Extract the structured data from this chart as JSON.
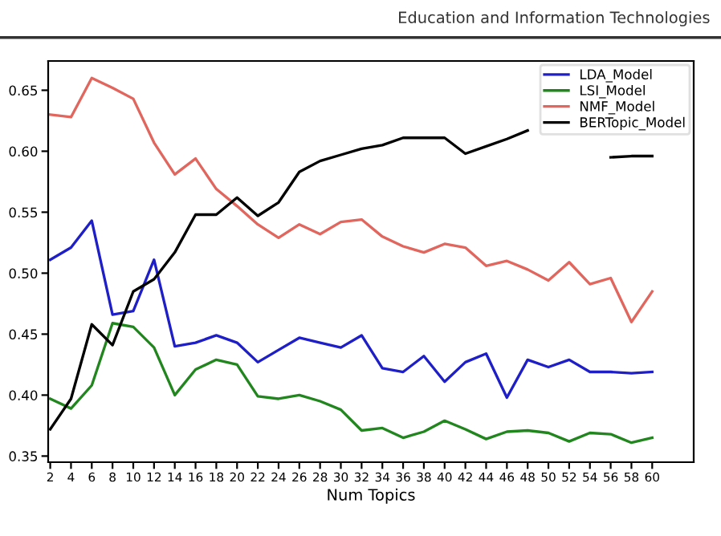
{
  "chart_data": {
    "type": "line",
    "annotations": [
      "Education and Information Technologies"
    ],
    "xlabel": "Num Topics",
    "x": [
      2,
      4,
      6,
      8,
      10,
      12,
      14,
      16,
      18,
      20,
      22,
      24,
      26,
      28,
      30,
      32,
      34,
      36,
      38,
      40,
      42,
      44,
      46,
      48,
      50,
      52,
      54,
      56,
      58,
      60
    ],
    "series": [
      {
        "name": "LDA_Model",
        "color": "#1f1fc8",
        "values": [
          0.511,
          0.521,
          0.543,
          0.466,
          0.469,
          0.511,
          0.44,
          0.443,
          0.449,
          0.443,
          0.427,
          0.437,
          0.447,
          0.443,
          0.439,
          0.449,
          0.422,
          0.419,
          0.432,
          0.411,
          0.427,
          0.434,
          0.398,
          0.429,
          0.423,
          0.429,
          0.419,
          0.419,
          0.418,
          0.419
        ]
      },
      {
        "name": "LSI_Model",
        "color": "#22861f",
        "values": [
          0.397,
          0.389,
          0.408,
          0.459,
          0.456,
          0.439,
          0.4,
          0.421,
          0.429,
          0.425,
          0.399,
          0.397,
          0.4,
          0.395,
          0.388,
          0.371,
          0.373,
          0.365,
          0.37,
          0.379,
          0.372,
          0.364,
          0.37,
          0.371,
          0.369,
          0.362,
          0.369,
          0.368,
          0.361,
          0.365
        ]
      },
      {
        "name": "NMF_Model",
        "color": "#e0665e",
        "values": [
          0.63,
          0.628,
          0.66,
          0.652,
          0.643,
          0.607,
          0.581,
          0.594,
          0.569,
          0.555,
          0.54,
          0.529,
          0.54,
          0.532,
          0.542,
          0.544,
          0.53,
          0.522,
          0.517,
          0.524,
          0.521,
          0.506,
          0.51,
          0.503,
          0.494,
          0.509,
          0.491,
          0.496,
          0.46,
          0.485
        ]
      },
      {
        "name": "BERTopic_Model",
        "color": "#000000",
        "values": [
          0.372,
          0.397,
          0.458,
          0.441,
          0.485,
          0.495,
          0.517,
          0.548,
          0.548,
          0.562,
          0.547,
          0.558,
          0.583,
          0.592,
          0.597,
          0.602,
          0.605,
          0.611,
          0.611,
          0.611,
          0.598,
          0.604,
          0.61,
          0.617,
          null,
          null,
          null,
          0.595,
          0.596,
          0.596
        ]
      }
    ],
    "xlim": [
      1.8,
      64
    ],
    "xticks": [
      2,
      4,
      6,
      8,
      10,
      12,
      14,
      16,
      18,
      20,
      22,
      24,
      26,
      28,
      30,
      32,
      34,
      36,
      38,
      40,
      42,
      44,
      46,
      48,
      50,
      52,
      54,
      56,
      58,
      60
    ],
    "ylim": [
      0.345,
      0.674
    ],
    "yticks": [
      {
        "value": 0.35,
        "label": "0.35"
      },
      {
        "value": 0.4,
        "label": "0.40"
      },
      {
        "value": 0.45,
        "label": "0.45"
      },
      {
        "value": 0.5,
        "label": "0.50"
      },
      {
        "value": 0.55,
        "label": "0.55"
      },
      {
        "value": 0.6,
        "label": "0.60"
      },
      {
        "value": 0.65,
        "label": "0.65"
      }
    ],
    "legend": "top right",
    "grid": false,
    "line_style": "solid"
  }
}
